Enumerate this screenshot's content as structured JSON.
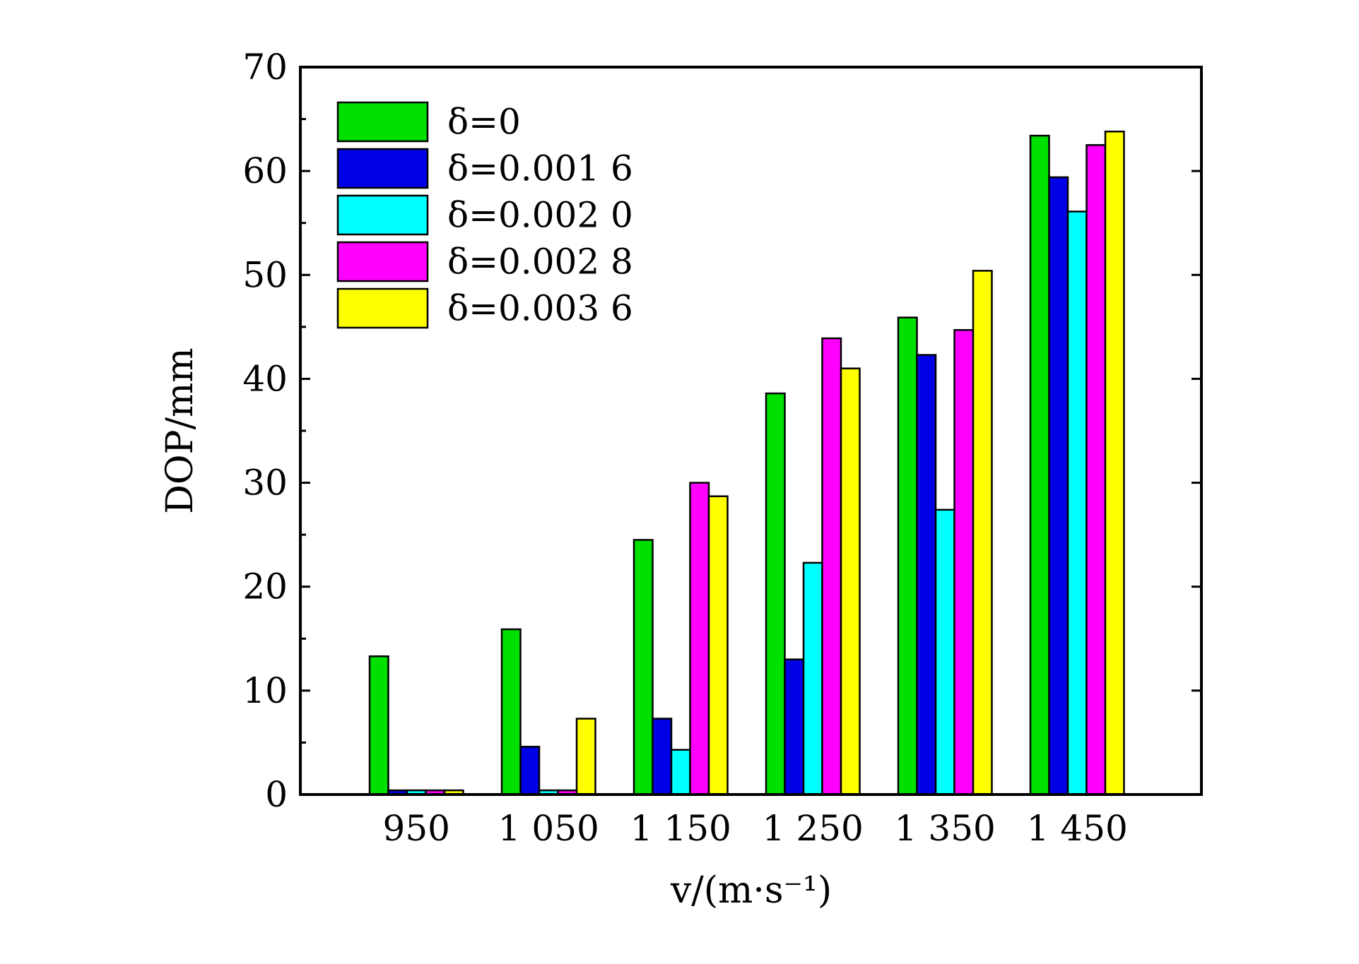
{
  "chart_data": {
    "type": "bar",
    "xlabel": "v/(m·s⁻¹)",
    "ylabel": "DOP/mm",
    "categories": [
      "950",
      "1 050",
      "1 150",
      "1 250",
      "1 350",
      "1 450"
    ],
    "ylim": [
      0,
      70
    ],
    "yticks": [
      0,
      10,
      20,
      30,
      40,
      50,
      60,
      70
    ],
    "grid": false,
    "legend_position": "top-left",
    "series": [
      {
        "name": "δ=0",
        "color": "#00e000",
        "values": [
          13.3,
          15.9,
          24.5,
          38.6,
          45.9,
          63.4
        ]
      },
      {
        "name": "δ=0.001 6",
        "color": "#0000e6",
        "values": [
          0.4,
          4.6,
          7.3,
          13.0,
          42.3,
          59.4
        ]
      },
      {
        "name": "δ=0.002 0",
        "color": "#00ffff",
        "values": [
          0.4,
          0.4,
          4.3,
          22.3,
          27.4,
          56.1
        ]
      },
      {
        "name": "δ=0.002 8",
        "color": "#ff00ff",
        "values": [
          0.4,
          0.4,
          30.0,
          43.9,
          44.7,
          62.5
        ]
      },
      {
        "name": "δ=0.003 6",
        "color": "#ffff00",
        "values": [
          0.4,
          7.3,
          28.7,
          41.0,
          50.4,
          63.8
        ]
      }
    ]
  }
}
